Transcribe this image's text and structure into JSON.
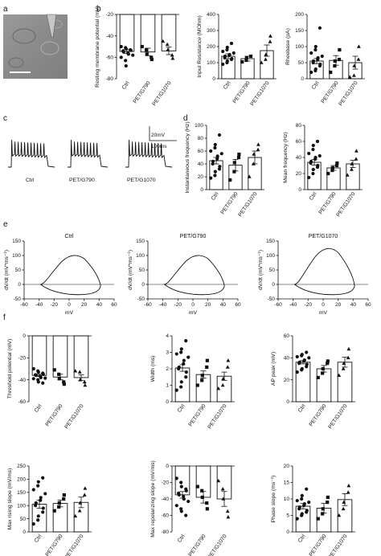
{
  "panels": {
    "a": "a",
    "b": "b",
    "c": "c",
    "d": "d",
    "e": "e",
    "f": "f"
  },
  "traces": {
    "labels": [
      "Ctrl",
      "PET/G790",
      "PET/G1070"
    ],
    "scalebar_v": "20mV",
    "scalebar_h": "100ms"
  },
  "colors": {
    "ink": "#111111",
    "micrograph": "#8f8f8f"
  },
  "chart_data": [
    {
      "id": "b1",
      "type": "bar",
      "panel": "b",
      "categories": [
        "Ctrl",
        "PET/G790",
        "PET/G1070"
      ],
      "values": [
        -54.5,
        -55,
        -54
      ],
      "errors": [
        2,
        3.5,
        3.5
      ],
      "points": [
        [
          -50,
          -51,
          -52,
          -53,
          -53.5,
          -54,
          -55,
          -56,
          -57,
          -58,
          -60,
          -63,
          -68
        ],
        [
          -50,
          -53,
          -57,
          -60,
          -62
        ],
        [
          -45,
          -48,
          -53,
          -58,
          -61
        ]
      ],
      "markers": [
        "circle",
        "square",
        "triangle"
      ],
      "ylabel": "Resting membrane potential (mV)",
      "ylim": [
        -80,
        -20
      ],
      "yticks": [
        -20,
        -40,
        -60,
        -80
      ]
    },
    {
      "id": "b2",
      "type": "bar",
      "panel": "b",
      "categories": [
        "Ctrl",
        "PET/G790",
        "PET/G1070"
      ],
      "values": [
        140,
        125,
        175
      ],
      "errors": [
        15,
        15,
        35
      ],
      "points": [
        [
          90,
          100,
          110,
          120,
          125,
          130,
          140,
          145,
          150,
          160,
          170,
          180,
          195,
          220
        ],
        [
          105,
          115,
          130,
          140
        ],
        [
          100,
          120,
          150,
          230,
          265
        ]
      ],
      "markers": [
        "circle",
        "square",
        "triangle"
      ],
      "ylabel": "Input Resistance (MOhm)",
      "ylim": [
        0,
        400
      ],
      "yticks": [
        0,
        100,
        200,
        300,
        400
      ]
    },
    {
      "id": "b3",
      "type": "bar",
      "panel": "b",
      "categories": [
        "Ctrl",
        "PET/G790",
        "PET/G1070"
      ],
      "values": [
        55,
        57,
        50
      ],
      "errors": [
        8,
        15,
        20
      ],
      "points": [
        [
          20,
          25,
          30,
          40,
          45,
          50,
          55,
          60,
          65,
          70,
          80,
          90,
          100,
          158
        ],
        [
          20,
          40,
          55,
          60,
          90
        ],
        [
          5,
          10,
          40,
          60,
          100
        ]
      ],
      "markers": [
        "circle",
        "square",
        "triangle"
      ],
      "ylabel": "Rheobase (pA)",
      "ylim": [
        0,
        200
      ],
      "yticks": [
        0,
        50,
        100,
        150,
        200
      ]
    },
    {
      "id": "d1",
      "type": "bar",
      "panel": "d",
      "categories": [
        "Ctrl",
        "PET/G790",
        "PET/G1070"
      ],
      "values": [
        45,
        38,
        50
      ],
      "errors": [
        5,
        9,
        10
      ],
      "points": [
        [
          18,
          22,
          28,
          32,
          36,
          40,
          44,
          48,
          52,
          56,
          60,
          65,
          70,
          85
        ],
        [
          15,
          28,
          42,
          50,
          55
        ],
        [
          20,
          40,
          55,
          62,
          70
        ]
      ],
      "markers": [
        "circle",
        "square",
        "triangle"
      ],
      "ylabel": "Instantaneous frequency (Hz)",
      "ylim": [
        0,
        100
      ],
      "yticks": [
        0,
        20,
        40,
        60,
        80,
        100
      ]
    },
    {
      "id": "d2",
      "type": "bar",
      "panel": "d",
      "categories": [
        "Ctrl",
        "PET/G790",
        "PET/G1070"
      ],
      "values": [
        34,
        27,
        32
      ],
      "errors": [
        3.5,
        3,
        4.5
      ],
      "points": [
        [
          15,
          20,
          25,
          28,
          30,
          33,
          35,
          38,
          40,
          42,
          45,
          50,
          55,
          60
        ],
        [
          20,
          24,
          27,
          30,
          33
        ],
        [
          18,
          25,
          32,
          38,
          48
        ]
      ],
      "markers": [
        "circle",
        "square",
        "triangle"
      ],
      "ylabel": "Mean frequency (Hz)",
      "ylim": [
        0,
        80
      ],
      "yticks": [
        0,
        20,
        40,
        60,
        80
      ]
    },
    {
      "id": "e",
      "type": "line",
      "panel": "e",
      "titles": [
        "Ctrl",
        "PET/G790",
        "PET/G1070"
      ],
      "peaks": [
        105,
        105,
        130
      ],
      "xlabel": "mV",
      "ylabel": "dV/dt (mV*ms⁻¹)",
      "xlim": [
        -60,
        60
      ],
      "ylim": [
        -50,
        150
      ],
      "xticks": [
        -60,
        -40,
        -20,
        0,
        20,
        40,
        60
      ],
      "yticks": [
        -50,
        0,
        50,
        100,
        150
      ]
    },
    {
      "id": "f1",
      "type": "bar",
      "panel": "f",
      "categories": [
        "Ctrl",
        "PET/G790",
        "PET/G1070"
      ],
      "values": [
        -36,
        -37.5,
        -38
      ],
      "errors": [
        1,
        2.5,
        2.5
      ],
      "points": [
        [
          -30,
          -32,
          -33,
          -34,
          -35,
          -35.5,
          -36,
          -37,
          -38,
          -38.5,
          -39,
          -40,
          -42,
          -43
        ],
        [
          -31,
          -35,
          -39,
          -42,
          -44
        ],
        [
          -32,
          -33,
          -40,
          -42,
          -45
        ]
      ],
      "markers": [
        "circle",
        "square",
        "triangle"
      ],
      "ylabel": "Threshold potential (mV)",
      "ylim": [
        -60,
        0
      ],
      "yticks": [
        0,
        -20,
        -40,
        -60
      ]
    },
    {
      "id": "f2",
      "type": "bar",
      "panel": "f",
      "categories": [
        "Ctrl",
        "PET/G790",
        "PET/G1070"
      ],
      "values": [
        2.05,
        1.65,
        1.55
      ],
      "errors": [
        0.2,
        0.22,
        0.25
      ],
      "points": [
        [
          0.7,
          0.9,
          1.2,
          1.5,
          1.8,
          2.0,
          2.1,
          2.3,
          2.5,
          2.7,
          2.9,
          3.0,
          3.2,
          3.7
        ],
        [
          1.0,
          1.3,
          1.6,
          2.1,
          2.5
        ],
        [
          0.8,
          1.0,
          1.4,
          2.1,
          2.5
        ]
      ],
      "markers": [
        "circle",
        "square",
        "triangle"
      ],
      "ylabel": "Width (ms)",
      "ylim": [
        0,
        4
      ],
      "yticks": [
        0,
        1,
        2,
        3,
        4
      ]
    },
    {
      "id": "f3",
      "type": "bar",
      "panel": "f",
      "categories": [
        "Ctrl",
        "PET/G790",
        "PET/G1070"
      ],
      "values": [
        36,
        30,
        36
      ],
      "errors": [
        1.5,
        3,
        4.5
      ],
      "points": [
        [
          27,
          29,
          30,
          32,
          34,
          35,
          36,
          37,
          38,
          40,
          41,
          42,
          43,
          45
        ],
        [
          22,
          26,
          30,
          35,
          37
        ],
        [
          24,
          30,
          35,
          40,
          48
        ]
      ],
      "markers": [
        "circle",
        "square",
        "triangle"
      ],
      "ylabel": "AP peak (mV)",
      "ylim": [
        0,
        60
      ],
      "yticks": [
        0,
        20,
        40,
        60
      ]
    },
    {
      "id": "f4",
      "type": "bar",
      "panel": "f",
      "categories": [
        "Ctrl",
        "PET/G790",
        "PET/G1070"
      ],
      "values": [
        105,
        108,
        112
      ],
      "errors": [
        15,
        13,
        20
      ],
      "points": [
        [
          30,
          45,
          60,
          75,
          90,
          100,
          110,
          120,
          130,
          145,
          160,
          175,
          190,
          205
        ],
        [
          80,
          95,
          110,
          125,
          140
        ],
        [
          60,
          80,
          110,
          140,
          165
        ]
      ],
      "markers": [
        "circle",
        "square",
        "triangle"
      ],
      "ylabel": "Max rising slope (mV/ms)",
      "ylim": [
        0,
        250
      ],
      "yticks": [
        0,
        50,
        100,
        150,
        200,
        250
      ]
    },
    {
      "id": "f5",
      "type": "bar",
      "panel": "f",
      "categories": [
        "Ctrl",
        "PET/G790",
        "PET/G1070"
      ],
      "values": [
        -35,
        -38,
        -40
      ],
      "errors": [
        4,
        7,
        9
      ],
      "points": [
        [
          -15,
          -20,
          -25,
          -28,
          -30,
          -33,
          -35,
          -37,
          -40,
          -43,
          -48,
          -52,
          -55,
          -60
        ],
        [
          -25,
          -30,
          -38,
          -45,
          -52
        ],
        [
          -18,
          -28,
          -40,
          -55,
          -62
        ]
      ],
      "markers": [
        "circle",
        "square",
        "triangle"
      ],
      "ylabel": "Max repolarizing slope (mV/ms)",
      "ylim": [
        -80,
        0
      ],
      "yticks": [
        0,
        -20,
        -40,
        -60,
        -80
      ]
    },
    {
      "id": "f6",
      "type": "bar",
      "panel": "f",
      "categories": [
        "Ctrl",
        "PET/G790",
        "PET/G1070"
      ],
      "values": [
        7.8,
        7.2,
        9.8
      ],
      "errors": [
        0.8,
        1.5,
        1.8
      ],
      "points": [
        [
          4,
          5,
          5.5,
          6,
          6.5,
          7,
          7.5,
          8,
          8.5,
          9,
          9.5,
          10,
          11,
          13
        ],
        [
          4,
          5.5,
          7,
          9,
          10.5
        ],
        [
          5,
          7,
          9,
          12,
          14
        ]
      ],
      "markers": [
        "circle",
        "square",
        "triangle"
      ],
      "ylabel": "Phase slope (ms⁻¹)",
      "ylim": [
        0,
        20
      ],
      "yticks": [
        0,
        5,
        10,
        15,
        20
      ]
    }
  ]
}
